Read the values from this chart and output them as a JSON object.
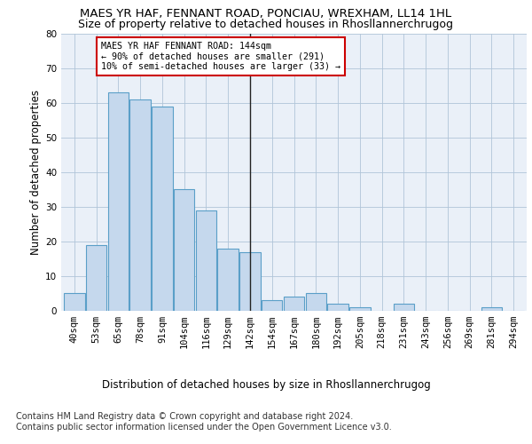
{
  "title1": "MAES YR HAF, FENNANT ROAD, PONCIAU, WREXHAM, LL14 1HL",
  "title2": "Size of property relative to detached houses in Rhosllannerchrugog",
  "xlabel": "Distribution of detached houses by size in Rhosllannerchrugog",
  "ylabel": "Number of detached properties",
  "categories": [
    "40sqm",
    "53sqm",
    "65sqm",
    "78sqm",
    "91sqm",
    "104sqm",
    "116sqm",
    "129sqm",
    "142sqm",
    "154sqm",
    "167sqm",
    "180sqm",
    "192sqm",
    "205sqm",
    "218sqm",
    "231sqm",
    "243sqm",
    "256sqm",
    "269sqm",
    "281sqm",
    "294sqm"
  ],
  "values": [
    5,
    19,
    63,
    61,
    59,
    35,
    29,
    18,
    17,
    3,
    4,
    5,
    2,
    1,
    0,
    2,
    0,
    0,
    0,
    1,
    0
  ],
  "bar_color": "#c5d8ed",
  "bar_edge_color": "#5a9fc8",
  "vline_x": 8,
  "annotation_text": "MAES YR HAF FENNANT ROAD: 144sqm\n← 90% of detached houses are smaller (291)\n10% of semi-detached houses are larger (33) →",
  "annotation_box_color": "#ffffff",
  "annotation_box_edge": "#cc0000",
  "footer1": "Contains HM Land Registry data © Crown copyright and database right 2024.",
  "footer2": "Contains public sector information licensed under the Open Government Licence v3.0.",
  "ylim": [
    0,
    80
  ],
  "yticks": [
    0,
    10,
    20,
    30,
    40,
    50,
    60,
    70,
    80
  ],
  "bg_color": "#eaf0f8",
  "title1_fontsize": 9.5,
  "title2_fontsize": 9.0,
  "axis_label_fontsize": 8.5,
  "tick_fontsize": 7.5,
  "footer_fontsize": 7.0
}
